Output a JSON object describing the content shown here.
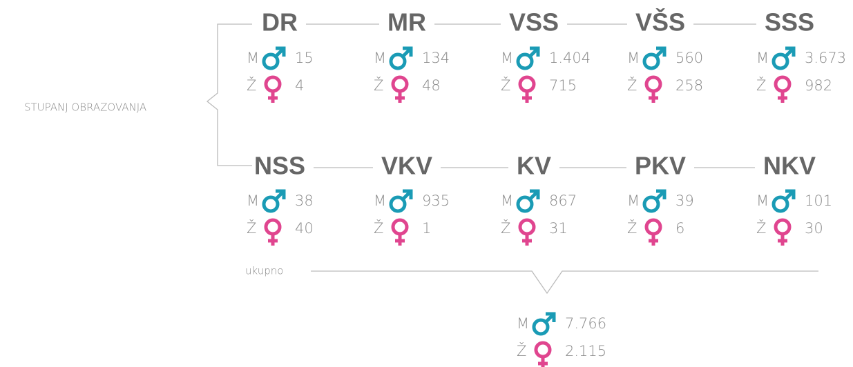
{
  "label": "STUPANJ OBRAZOVANJA",
  "male_label": "M",
  "female_label": "Ž",
  "groups": [
    {
      "name": "DR",
      "m": "15",
      "z": "4"
    },
    {
      "name": "MR",
      "m": "134",
      "z": "48"
    },
    {
      "name": "VSS",
      "m": "1.404",
      "z": "715"
    },
    {
      "name": "VŠS",
      "m": "560",
      "z": "258"
    },
    {
      "name": "SSS",
      "m": "3.673",
      "z": "982"
    },
    {
      "name": "NSS",
      "m": "38",
      "z": "40"
    },
    {
      "name": "VKV",
      "m": "935",
      "z": "1"
    },
    {
      "name": "KV",
      "m": "867",
      "z": "31"
    },
    {
      "name": "PKV",
      "m": "39",
      "z": "6"
    },
    {
      "name": "NKV",
      "m": "101",
      "z": "30"
    }
  ],
  "total": {
    "label": "ukupno",
    "m": "7.766",
    "z": "2.115"
  }
}
